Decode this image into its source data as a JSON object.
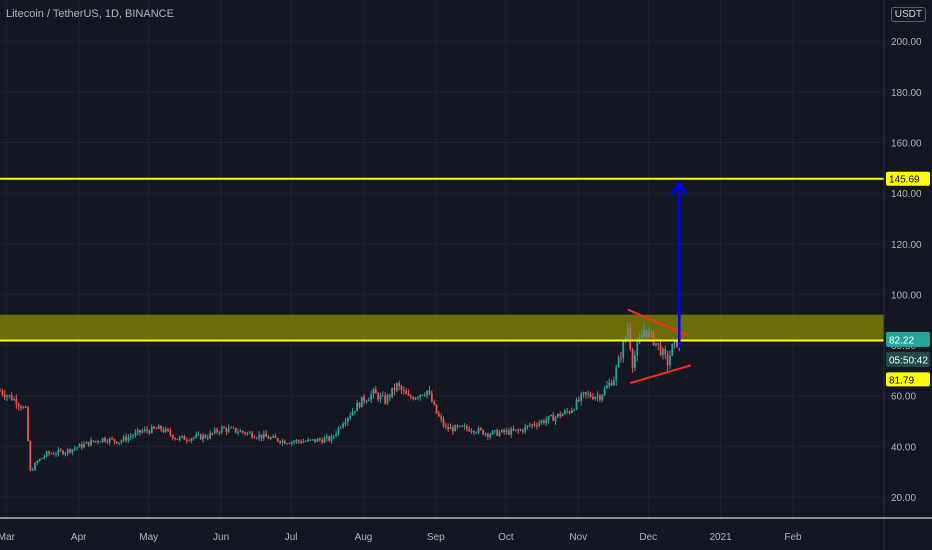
{
  "header": {
    "title": "Litecoin / TetherUS, 1D, BINANCE",
    "currency": "USDT"
  },
  "colors": {
    "background": "#131722",
    "grid": "#1e222d",
    "up": "#26a69a",
    "down": "#ef5350",
    "level_line": "#ffff00",
    "zone_fill": "#8b8b00",
    "arrow": "#0000ff",
    "triangle": "#ff2b2b",
    "price_badge": "#26a69a",
    "countdown_badge": "#1e4b47"
  },
  "chart_data": {
    "type": "candlestick",
    "symbol": "Litecoin / TetherUS",
    "interval": "1D",
    "exchange": "BINANCE",
    "ylim": [
      15,
      215
    ],
    "y_ticks": [
      "20.00",
      "40.00",
      "60.00",
      "80.00",
      "100.00",
      "120.00",
      "140.00",
      "160.00",
      "180.00",
      "200.00"
    ],
    "x_ticks": [
      "Mar",
      "Apr",
      "May",
      "Jun",
      "Jul",
      "Aug",
      "Sep",
      "Oct",
      "Nov",
      "Dec",
      "2021",
      "Feb"
    ],
    "x_range": [
      "2020-02-29",
      "2021-02-28"
    ],
    "price_path": [
      [
        "2020-02-29",
        62
      ],
      [
        "2020-03-07",
        58
      ],
      [
        "2020-03-11",
        54
      ],
      [
        "2020-03-13",
        30
      ],
      [
        "2020-03-16",
        34
      ],
      [
        "2020-03-20",
        37
      ],
      [
        "2020-03-28",
        38
      ],
      [
        "2020-04-06",
        41
      ],
      [
        "2020-04-13",
        43
      ],
      [
        "2020-04-20",
        42
      ],
      [
        "2020-04-30",
        46
      ],
      [
        "2020-05-08",
        47
      ],
      [
        "2020-05-15",
        43
      ],
      [
        "2020-05-28",
        44
      ],
      [
        "2020-06-03",
        47
      ],
      [
        "2020-06-10",
        46
      ],
      [
        "2020-06-20",
        44
      ],
      [
        "2020-06-30",
        42
      ],
      [
        "2020-07-10",
        42
      ],
      [
        "2020-07-20",
        43
      ],
      [
        "2020-07-25",
        50
      ],
      [
        "2020-08-02",
        58
      ],
      [
        "2020-08-07",
        61
      ],
      [
        "2020-08-12",
        58
      ],
      [
        "2020-08-17",
        64
      ],
      [
        "2020-08-22",
        59
      ],
      [
        "2020-08-30",
        62
      ],
      [
        "2020-09-03",
        53
      ],
      [
        "2020-09-07",
        47
      ],
      [
        "2020-09-18",
        47
      ],
      [
        "2020-09-25",
        45
      ],
      [
        "2020-10-08",
        46
      ],
      [
        "2020-10-15",
        49
      ],
      [
        "2020-10-22",
        51
      ],
      [
        "2020-10-30",
        54
      ],
      [
        "2020-11-05",
        60
      ],
      [
        "2020-11-12",
        60
      ],
      [
        "2020-11-18",
        67
      ],
      [
        "2020-11-22",
        80
      ],
      [
        "2020-11-24",
        87
      ],
      [
        "2020-11-26",
        73
      ],
      [
        "2020-11-28",
        79
      ],
      [
        "2020-12-01",
        86
      ],
      [
        "2020-12-05",
        82
      ],
      [
        "2020-12-08",
        78
      ],
      [
        "2020-12-11",
        73
      ],
      [
        "2020-12-13",
        79
      ],
      [
        "2020-12-16",
        82.22
      ]
    ],
    "horizontal_levels": [
      {
        "value": 145.69,
        "label": "145.69"
      },
      {
        "value": 81.79,
        "label": "81.79"
      }
    ],
    "resistance_zone": {
      "from": 82,
      "to": 92
    },
    "triangle": {
      "upper": [
        [
          "2020-11-24",
          94
        ],
        [
          "2020-12-19",
          84
        ]
      ],
      "lower": [
        [
          "2020-11-25",
          65
        ],
        [
          "2020-12-21",
          72
        ]
      ]
    },
    "target_arrow": {
      "date": "2020-12-16",
      "from": 79,
      "to": 144
    },
    "last_price": {
      "value": 82.22,
      "label": "82.22",
      "countdown": "05:50:42"
    }
  }
}
